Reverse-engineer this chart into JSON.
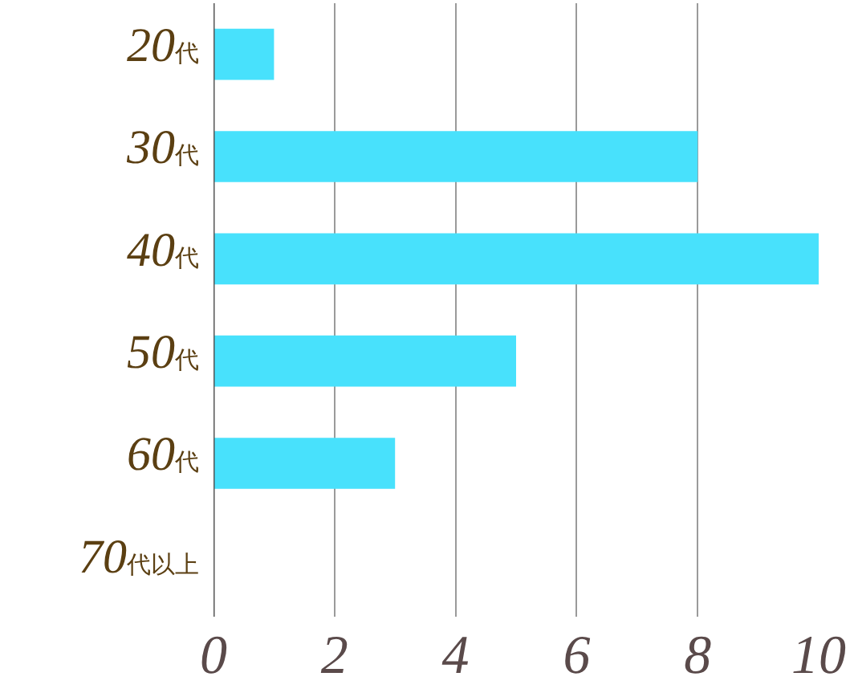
{
  "chart_data": {
    "type": "bar",
    "orientation": "horizontal",
    "categories": [
      "20代",
      "30代",
      "40代",
      "50代",
      "60代",
      "70代以上"
    ],
    "values": [
      1,
      8,
      10,
      5,
      3,
      0
    ],
    "color": "#48e1fc",
    "xlim": [
      0,
      10
    ],
    "xticks": [
      0,
      2,
      4,
      6,
      8,
      10
    ],
    "grid": "x"
  }
}
